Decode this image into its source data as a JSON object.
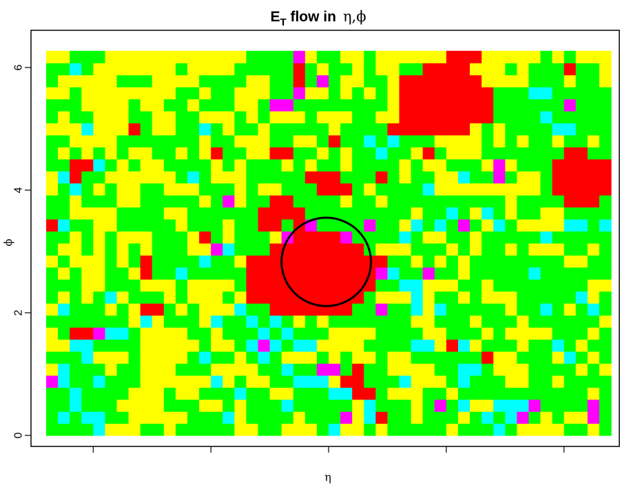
{
  "chart_data": {
    "type": "heatmap",
    "title": {
      "main": "E",
      "subscript": "T",
      "rest": " flow in",
      "symbols": "η,ϕ"
    },
    "xlabel": "η",
    "ylabel": "ϕ",
    "xlim": [
      0,
      48
    ],
    "ylim": [
      -0.15,
      6.28
    ],
    "y_ticks": [
      0,
      2,
      4,
      6
    ],
    "y_tick_labels": [
      "0",
      "2",
      "4",
      "6"
    ],
    "x_ticks": [
      4,
      14,
      24,
      34,
      44
    ],
    "x_tick_labels": [
      "",
      "",
      "",
      "",
      ""
    ],
    "grid": {
      "cols": 48,
      "rows": 32,
      "x_start": 0,
      "cell_width": 1,
      "y_start": 0,
      "cell_height": 0.196
    },
    "palette": {
      "0": "#FFFF00",
      "1": "#00FF00",
      "2": "#00FFFF",
      "3": "#FF00FF",
      "4": "#FF0000"
    },
    "level_names": [
      "yellow",
      "green",
      "cyan",
      "magenta",
      "red"
    ],
    "cells_by_row_bottom_to_top": [
      "111120001101111100110001200101111101112100001101",
      "121221100000111201111011130241101110121231010031",
      "112111000011100101112111110211101312002223111131",
      "112111100010011121100111224410001101111111111101",
      "321121110000002010011222044111200012111001101111",
      "021110110001110000112113314110000112210001111010",
      "111200010000121101210001010010011111140011102101",
      "002211110000010012321220000111122042011101121011",
      "014432210000110111212111000011110011101000011101",
      "111111102011102112121010111111100111011101111110",
      "021110104410100021144444441131120211111011210121",
      "101012011101000104444444444100020110100011111201",
      "111001110001000014444444444411220001101111111100",
      "101001104112111114444444444432113110111112111111",
      "010001014111121104444444444441101010111111110011",
      "100101010111003211144444444100011101011010001101",
      "110101000111041011103444431111210011011111211111",
      "421100111110111011441431111311021213102100002212",
      "110000111100111111444411111111101121021011001111",
      "110111001111101301144111101101111111111011114441",
      "012101001100011101001114441011112000000000144444",
      "024110000001210001111144411141011002113100144444",
      "114421010011110101110101101111010011103011144444",
      "101010100110104110044110101121104100011111114411",
      "110000111111101100011001411212111000010101101101",
      "000200041001121011011111011114444444010111122111",
      "101100011001100010100010001100444444441111211111",
      "111000010011011100133111111110444444441111113111",
      "001000000001101100011300101010444444441112211111",
      "100000111000011110011413100110444444400001110110",
      "112100000001000011111410110100114444000101114110",
      "001110000000000001111301100100000044400000101000"
    ],
    "circle": {
      "center_eta": 23.8,
      "center_phi": 2.83,
      "radius_eta": 3.8,
      "radius_phi": 0.72
    }
  }
}
